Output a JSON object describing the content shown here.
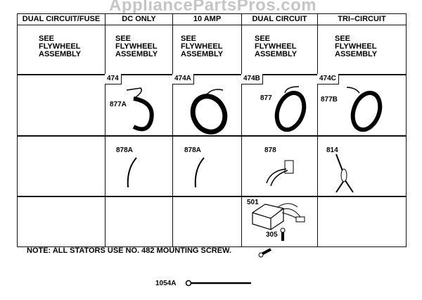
{
  "watermark": "AppliancePartsPros.com",
  "columns": [
    {
      "header": "DUAL CIRCUIT/FUSE",
      "see": "SEE\nFLYWHEEL\nASSEMBLY",
      "stator_ref": "",
      "stator_label": "",
      "wire_label": ""
    },
    {
      "header": "DC ONLY",
      "see": "SEE\nFLYWHEEL\nASSEMBLY",
      "stator_ref": "474",
      "stator_label": "877A",
      "wire_label": "878A"
    },
    {
      "header": "10 AMP",
      "see": "SEE\nFLYWHEEL\nASSEMBLY",
      "stator_ref": "474A",
      "stator_label": "",
      "wire_label": "878A"
    },
    {
      "header": "DUAL CIRCUIT",
      "see": "SEE\nFLYWHEEL\nASSEMBLY",
      "stator_ref": "474B",
      "stator_label": "877",
      "wire_label": "878"
    },
    {
      "header": "TRI–CIRCUIT",
      "see": "SEE\nFLYWHEEL\nASSEMBLY",
      "stator_ref": "474C",
      "stator_label": "877B",
      "wire_label": "814"
    }
  ],
  "regulator": {
    "label": "501",
    "screw_label": "305"
  },
  "note": "NOTE: ALL STATORS USE NO. 482 MOUNTING SCREW.",
  "tie_label": "1054A"
}
